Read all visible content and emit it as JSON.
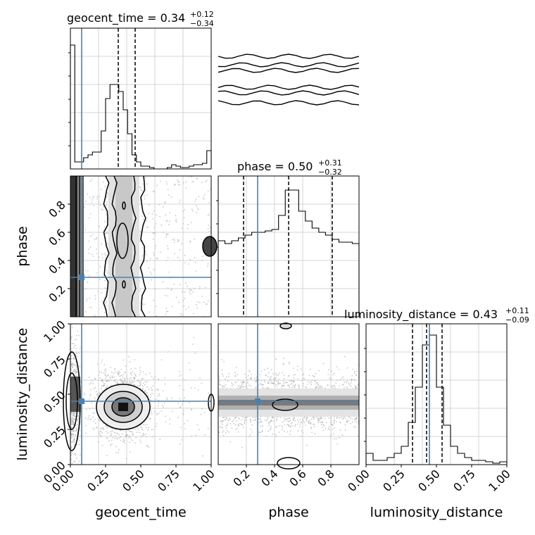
{
  "chart_data": {
    "type": "corner",
    "parameters": [
      "geocent_time",
      "phase",
      "luminosity_distance"
    ],
    "truth": {
      "geocent_time": 0.08,
      "phase": 0.28,
      "luminosity_distance": 0.45
    },
    "colors": {
      "truth": "#4682b4",
      "hist": "#000000",
      "grid": "#c8c8c8",
      "points": "#b0b0b0"
    },
    "grid": true,
    "diagonal": [
      {
        "param": "geocent_time",
        "title": "geocent_time = 0.34",
        "title_upper": "+0.12",
        "title_lower": "−0.34",
        "xlim": [
          0,
          1
        ],
        "quantile_lines": [
          0.34,
          0.46
        ],
        "hist": [
          0.88,
          0.05,
          0.05,
          0.08,
          0.1,
          0.12,
          0.12,
          0.27,
          0.5,
          0.6,
          0.6,
          0.55,
          0.42,
          0.25,
          0.1,
          0.05,
          0.02,
          0.02,
          0.01,
          0.0,
          0.0,
          0.0,
          0.01,
          0.03,
          0.02,
          0.01,
          0.01,
          0.02,
          0.03,
          0.03,
          0.04,
          0.13
        ]
      },
      {
        "param": "phase",
        "title": "phase = 0.50",
        "title_upper": "+0.31",
        "title_lower": "−0.32",
        "xlim": [
          0,
          1
        ],
        "quantile_lines": [
          0.18,
          0.5,
          0.81
        ],
        "hist": [
          0.54,
          0.52,
          0.54,
          0.56,
          0.58,
          0.6,
          0.6,
          0.61,
          0.62,
          0.72,
          0.9,
          0.9,
          0.75,
          0.68,
          0.63,
          0.6,
          0.58,
          0.55,
          0.53,
          0.53,
          0.52
        ]
      },
      {
        "param": "luminosity_distance",
        "title": "luminosity_distance = 0.43",
        "title_upper": "+0.11",
        "title_lower": "−0.09",
        "xlim": [
          0,
          1
        ],
        "quantile_lines": [
          0.33,
          0.43,
          0.54
        ],
        "hist": [
          0.08,
          0.03,
          0.03,
          0.05,
          0.08,
          0.13,
          0.3,
          0.55,
          0.85,
          0.92,
          0.55,
          0.28,
          0.13,
          0.08,
          0.05,
          0.03,
          0.03,
          0.02,
          0.01,
          0.02
        ]
      }
    ],
    "x_ticks": {
      "geocent_time": [
        "0.00",
        "0.25",
        "0.50",
        "0.75",
        "1.00"
      ],
      "phase": [
        "0.2",
        "0.4",
        "0.6",
        "0.8"
      ],
      "luminosity_distance": [
        "0.00",
        "0.25",
        "0.50",
        "0.75",
        "1.00"
      ]
    },
    "y_ticks": {
      "phase": [
        "0.2",
        "0.4",
        "0.6",
        "0.8"
      ],
      "luminosity_distance": [
        "0.00",
        "0.25",
        "0.50",
        "0.75",
        "1.00"
      ]
    },
    "x_labels": [
      "geocent_time",
      "phase",
      "luminosity_distance"
    ],
    "y_labels": [
      "phase",
      "luminosity_distance"
    ]
  }
}
